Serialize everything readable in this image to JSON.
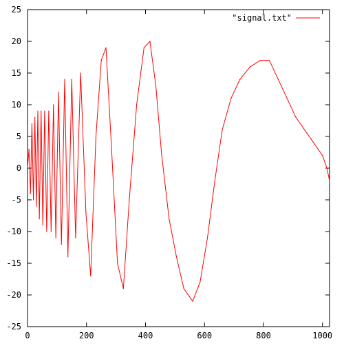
{
  "chart_data": {
    "type": "line",
    "title": "",
    "xlabel": "",
    "ylabel": "",
    "xlim": [
      0,
      1024
    ],
    "ylim": [
      -25,
      25
    ],
    "x_ticks": [
      0,
      200,
      400,
      600,
      800,
      1000
    ],
    "y_ticks": [
      -25,
      -20,
      -15,
      -10,
      -5,
      0,
      5,
      10,
      15,
      20,
      25
    ],
    "grid": false,
    "legend_position": "top-right",
    "series": [
      {
        "name": "\"signal.txt\"",
        "color": "#ff0000",
        "points": [
          [
            0,
            0
          ],
          [
            5,
            3
          ],
          [
            10,
            -4
          ],
          [
            15,
            7
          ],
          [
            20,
            -5
          ],
          [
            25,
            8
          ],
          [
            30,
            -6
          ],
          [
            35,
            9
          ],
          [
            40,
            -8
          ],
          [
            46,
            9
          ],
          [
            52,
            -9
          ],
          [
            58,
            9
          ],
          [
            65,
            -10
          ],
          [
            72,
            9
          ],
          [
            80,
            -10
          ],
          [
            88,
            10
          ],
          [
            96,
            -11
          ],
          [
            105,
            12
          ],
          [
            115,
            -12
          ],
          [
            126,
            14
          ],
          [
            137,
            -14
          ],
          [
            150,
            14
          ],
          [
            163,
            -11
          ],
          [
            180,
            15
          ],
          [
            198,
            -7
          ],
          [
            214,
            -17
          ],
          [
            232,
            5
          ],
          [
            250,
            17
          ],
          [
            266,
            19
          ],
          [
            285,
            3
          ],
          [
            305,
            -15
          ],
          [
            325,
            -19
          ],
          [
            345,
            -5
          ],
          [
            370,
            10
          ],
          [
            395,
            19
          ],
          [
            415,
            20
          ],
          [
            435,
            13
          ],
          [
            455,
            2
          ],
          [
            480,
            -8
          ],
          [
            505,
            -14
          ],
          [
            530,
            -19
          ],
          [
            560,
            -21
          ],
          [
            585,
            -18
          ],
          [
            610,
            -11
          ],
          [
            635,
            -2
          ],
          [
            660,
            6
          ],
          [
            690,
            11
          ],
          [
            720,
            14
          ],
          [
            755,
            16
          ],
          [
            790,
            17
          ],
          [
            820,
            17
          ],
          [
            850,
            14
          ],
          [
            880,
            11
          ],
          [
            910,
            8
          ],
          [
            940,
            6
          ],
          [
            970,
            4
          ],
          [
            1000,
            2
          ],
          [
            1015,
            0
          ],
          [
            1024,
            -2
          ]
        ]
      }
    ]
  }
}
